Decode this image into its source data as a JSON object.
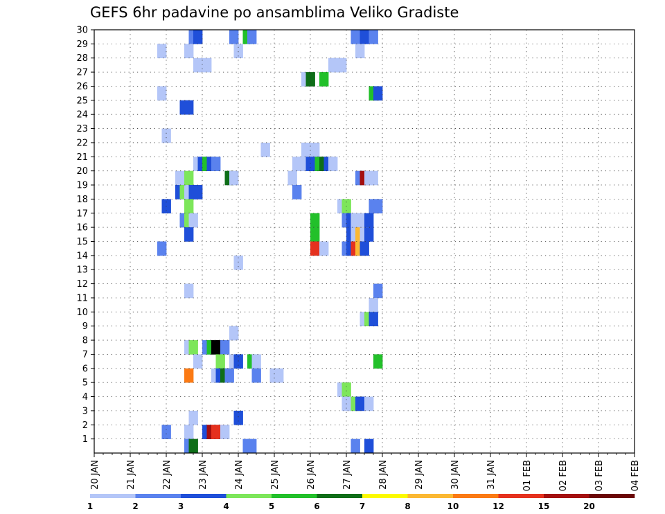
{
  "chart_data": {
    "type": "heatmap",
    "title": "GEFS 6hr padavine po ansamblima Veliko Gradiste",
    "xlabel": "",
    "ylabel": "",
    "x_tick_labels": [
      "20 JAN",
      "21 JAN",
      "22 JAN",
      "23 JAN",
      "24 JAN",
      "25 JAN",
      "26 JAN",
      "27 JAN",
      "28 JAN",
      "29 JAN",
      "30 JAN",
      "31 JAN",
      "01 FEB",
      "02 FEB",
      "03 FEB",
      "04 FEB"
    ],
    "y_tick_labels": [
      "1",
      "2",
      "3",
      "4",
      "5",
      "6",
      "7",
      "8",
      "9",
      "10",
      "11",
      "12",
      "13",
      "14",
      "15",
      "16",
      "17",
      "18",
      "19",
      "20",
      "21",
      "22",
      "23",
      "24",
      "25",
      "26",
      "27",
      "28",
      "29",
      "30"
    ],
    "x_range_days": [
      0,
      15
    ],
    "y_range": [
      0,
      30
    ],
    "grid": true,
    "legend_position": "bottom",
    "legend": {
      "labels": [
        "1",
        "2",
        "3",
        "4",
        "5",
        "6",
        "7",
        "8",
        "10",
        "12",
        "15",
        "20"
      ],
      "colors": [
        "#b4c6f8",
        "#5a82ee",
        "#1f4fd9",
        "#7de65a",
        "#22c02a",
        "#0e6e18",
        "#fcfa00",
        "#fbb833",
        "#fb7a14",
        "#e5311e",
        "#a40f0f",
        "#6b0606"
      ]
    },
    "cells": [
      {
        "y": 30,
        "t": [
          [
            10.5,
            2
          ],
          [
            11,
            3
          ],
          [
            15,
            2
          ],
          [
            16.5,
            5
          ],
          [
            17,
            2
          ],
          [
            28.5,
            2
          ],
          [
            29.5,
            3
          ],
          [
            30.5,
            2
          ]
        ]
      },
      {
        "y": 29,
        "t": [
          [
            7,
            1
          ],
          [
            10,
            1
          ],
          [
            15.5,
            1
          ],
          [
            29,
            1
          ]
        ]
      },
      {
        "y": 28,
        "t": [
          [
            11,
            1
          ],
          [
            12,
            1
          ],
          [
            26,
            1
          ],
          [
            26.5,
            1
          ],
          [
            27,
            1
          ]
        ]
      },
      {
        "y": 27,
        "t": [
          [
            23,
            1
          ],
          [
            23.5,
            6
          ],
          [
            25,
            5
          ]
        ]
      },
      {
        "y": 26,
        "t": [
          [
            7,
            1
          ],
          [
            30.5,
            5
          ],
          [
            31,
            3
          ]
        ]
      },
      {
        "y": 25,
        "t": [
          [
            9.5,
            3
          ],
          [
            10,
            3
          ]
        ]
      },
      {
        "y": 23,
        "t": [
          [
            7.5,
            1
          ]
        ]
      },
      {
        "y": 22,
        "t": [
          [
            18.5,
            1
          ],
          [
            23,
            1
          ],
          [
            24,
            1
          ]
        ]
      },
      {
        "y": 21,
        "t": [
          [
            11,
            1
          ],
          [
            11.5,
            3
          ],
          [
            12,
            5
          ],
          [
            12.5,
            3
          ],
          [
            13,
            2
          ],
          [
            22,
            1
          ],
          [
            22.5,
            1
          ],
          [
            23.5,
            3
          ],
          [
            24,
            3
          ],
          [
            24.5,
            5
          ],
          [
            25,
            6
          ],
          [
            25.5,
            3
          ],
          [
            26,
            1
          ]
        ]
      },
      {
        "y": 20,
        "t": [
          [
            9,
            1
          ],
          [
            10,
            4
          ],
          [
            14.5,
            6
          ],
          [
            15,
            1
          ],
          [
            21.5,
            1
          ],
          [
            29,
            2
          ],
          [
            29.5,
            11
          ],
          [
            30,
            1
          ],
          [
            30.5,
            1
          ]
        ]
      },
      {
        "y": 19,
        "t": [
          [
            9,
            3
          ],
          [
            9.5,
            4
          ],
          [
            10,
            1
          ],
          [
            10.5,
            3
          ],
          [
            11,
            3
          ],
          [
            22,
            2
          ]
        ]
      },
      {
        "y": 18,
        "t": [
          [
            7.5,
            3
          ],
          [
            10,
            4
          ],
          [
            27,
            1
          ],
          [
            27.5,
            4
          ],
          [
            30.5,
            2
          ],
          [
            31,
            2
          ]
        ]
      },
      {
        "y": 17,
        "t": [
          [
            9.5,
            2
          ],
          [
            10,
            4
          ],
          [
            10.5,
            1
          ],
          [
            24,
            5
          ],
          [
            27.5,
            2
          ],
          [
            28,
            3
          ],
          [
            28.5,
            1
          ],
          [
            29,
            1
          ],
          [
            30,
            3
          ]
        ]
      },
      {
        "y": 16,
        "t": [
          [
            10,
            3
          ],
          [
            24,
            5
          ],
          [
            28,
            3
          ],
          [
            28.5,
            1
          ],
          [
            29,
            8
          ],
          [
            29.5,
            1
          ],
          [
            30,
            3
          ]
        ]
      },
      {
        "y": 15,
        "t": [
          [
            7,
            2
          ],
          [
            24,
            10
          ],
          [
            25,
            1
          ],
          [
            27.5,
            2
          ],
          [
            28,
            3
          ],
          [
            28.5,
            10
          ],
          [
            29,
            8
          ],
          [
            29.5,
            3
          ]
        ]
      },
      {
        "y": 14,
        "t": [
          [
            15.5,
            1
          ]
        ]
      },
      {
        "y": 12,
        "t": [
          [
            10,
            1
          ],
          [
            31,
            2
          ]
        ]
      },
      {
        "y": 11,
        "t": [
          [
            30.5,
            1
          ]
        ]
      },
      {
        "y": 10,
        "t": [
          [
            29.5,
            1
          ],
          [
            30,
            4
          ],
          [
            30.5,
            3
          ]
        ]
      },
      {
        "y": 9,
        "t": [
          [
            15,
            1
          ]
        ]
      },
      {
        "y": 8,
        "t": [
          [
            10,
            1
          ],
          [
            10.5,
            4
          ],
          [
            12,
            2
          ],
          [
            12.5,
            5
          ],
          [
            13,
            13
          ],
          [
            13.5,
            14
          ],
          [
            14,
            2
          ]
        ]
      },
      {
        "y": 7,
        "t": [
          [
            11,
            1
          ],
          [
            13.5,
            4
          ],
          [
            15,
            1
          ],
          [
            15.5,
            3
          ],
          [
            17,
            5
          ],
          [
            17.5,
            1
          ],
          [
            31,
            5
          ]
        ]
      },
      {
        "y": 6,
        "t": [
          [
            10,
            9
          ],
          [
            13,
            1
          ],
          [
            13.5,
            3
          ],
          [
            14,
            6
          ],
          [
            14.5,
            2
          ],
          [
            17.5,
            2
          ],
          [
            19.5,
            1
          ],
          [
            20,
            1
          ]
        ]
      },
      {
        "y": 5,
        "t": [
          [
            27,
            1
          ],
          [
            27.5,
            4
          ]
        ]
      },
      {
        "y": 4,
        "t": [
          [
            27.5,
            1
          ],
          [
            28,
            1
          ],
          [
            28.5,
            4
          ],
          [
            29,
            3
          ],
          [
            30,
            1
          ]
        ]
      },
      {
        "y": 3,
        "t": [
          [
            10.5,
            1
          ],
          [
            15.5,
            3
          ]
        ]
      },
      {
        "y": 2,
        "t": [
          [
            7.5,
            2
          ],
          [
            10,
            1
          ],
          [
            12,
            3
          ],
          [
            12.5,
            11
          ],
          [
            13,
            10
          ],
          [
            13.5,
            10
          ],
          [
            14,
            1
          ]
        ]
      },
      {
        "y": 1,
        "t": [
          [
            10,
            2
          ],
          [
            10.5,
            6
          ],
          [
            16.5,
            2
          ],
          [
            17,
            2
          ],
          [
            28.5,
            2
          ],
          [
            30,
            3
          ]
        ]
      }
    ]
  }
}
